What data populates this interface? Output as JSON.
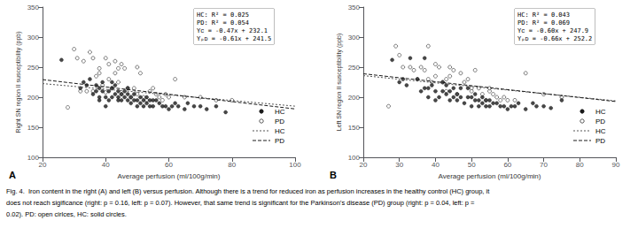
{
  "chart_data": [
    {
      "type": "scatter",
      "title": "A",
      "annotations": [
        "HC: R² = 0.025\nPD: R² = 0.054\nYᴄ = -0.47x + 232.1\nYₚᴅ = -0.61x + 241.5"
      ],
      "xlabel": "Average perfusion (ml/100g/min)",
      "ylabel": "Right SN region II susceptibility (ppb)",
      "xlim": [
        20,
        100
      ],
      "ylim": [
        100,
        350
      ],
      "xticks": [
        20,
        40,
        60,
        80,
        100
      ],
      "yticks": [
        100,
        150,
        200,
        250,
        300,
        350
      ],
      "grid": false,
      "series": [
        {
          "name": "HC",
          "type": "scatter",
          "marker": "circle",
          "color": "#1a1a1a",
          "x": [
            26,
            32,
            33,
            34,
            35,
            36,
            37,
            37,
            38,
            38,
            38,
            39,
            39,
            40,
            40,
            41,
            41,
            42,
            42,
            42,
            43,
            43,
            44,
            44,
            44,
            45,
            45,
            46,
            46,
            47,
            47,
            47,
            48,
            48,
            49,
            49,
            50,
            50,
            51,
            51,
            52,
            52,
            53,
            53,
            54,
            54,
            55,
            55,
            56,
            57,
            58,
            59,
            60,
            61,
            62,
            63,
            65,
            66,
            68,
            70,
            72,
            75,
            78
          ],
          "values": [
            262,
            215,
            225,
            220,
            230,
            205,
            210,
            220,
            195,
            200,
            215,
            210,
            225,
            185,
            200,
            195,
            210,
            200,
            215,
            225,
            205,
            220,
            195,
            200,
            210,
            195,
            205,
            200,
            210,
            195,
            205,
            215,
            190,
            200,
            195,
            205,
            185,
            195,
            190,
            200,
            185,
            195,
            190,
            200,
            185,
            195,
            185,
            195,
            195,
            190,
            185,
            185,
            180,
            185,
            190,
            185,
            180,
            190,
            185,
            185,
            180,
            185,
            175
          ]
        },
        {
          "name": "PD",
          "type": "scatter",
          "marker": "open_circle",
          "color": "#1a1a1a",
          "x": [
            28,
            30,
            31,
            32,
            33,
            34,
            35,
            36,
            36,
            37,
            38,
            38,
            39,
            40,
            40,
            41,
            41,
            42,
            43,
            43,
            44,
            44,
            45,
            45,
            46,
            47,
            48,
            49,
            50,
            50,
            51,
            52,
            53,
            54,
            55,
            56,
            57,
            58,
            59,
            60,
            62,
            65,
            70,
            75,
            80
          ],
          "values": [
            183,
            280,
            265,
            210,
            260,
            210,
            275,
            265,
            210,
            235,
            240,
            248,
            220,
            265,
            208,
            255,
            230,
            215,
            260,
            240,
            248,
            225,
            205,
            255,
            248,
            215,
            200,
            215,
            205,
            250,
            240,
            200,
            195,
            210,
            215,
            205,
            200,
            195,
            205,
            200,
            230,
            200,
            200,
            195,
            195
          ]
        },
        {
          "name": "HC",
          "type": "line",
          "line_style": "dotted",
          "color": "#555555",
          "x": [
            20,
            100
          ],
          "values": [
            222.7,
            185.1
          ]
        },
        {
          "name": "PD",
          "type": "line",
          "line_style": "dashed",
          "color": "#1a1a1a",
          "x": [
            20,
            100
          ],
          "values": [
            229.3,
            180.5
          ]
        }
      ]
    },
    {
      "type": "scatter",
      "title": "B",
      "annotations": [
        "HC: R² = 0.043\nPD: R² = 0.069\nYᴄ = -0.60x + 247.9\nYₚᴅ = -0.66x + 252.2"
      ],
      "xlabel": "Average perfusion (ml/100g/min)",
      "ylabel": "Left SN region II susceptibility (ppb)",
      "xlim": [
        20,
        90
      ],
      "ylim": [
        100,
        350
      ],
      "xticks": [
        20,
        30,
        40,
        50,
        60,
        70,
        80,
        90
      ],
      "yticks": [
        100,
        150,
        200,
        250,
        300,
        350
      ],
      "grid": false,
      "series": [
        {
          "name": "HC",
          "type": "scatter",
          "marker": "circle",
          "color": "#1a1a1a",
          "x": [
            28,
            30,
            31,
            32,
            33,
            35,
            36,
            37,
            37,
            38,
            38,
            39,
            40,
            40,
            41,
            42,
            42,
            43,
            43,
            44,
            44,
            45,
            45,
            46,
            46,
            47,
            47,
            48,
            49,
            49,
            50,
            50,
            51,
            51,
            52,
            52,
            53,
            53,
            54,
            54,
            55,
            55,
            56,
            57,
            58,
            59,
            60,
            61,
            62,
            63,
            65,
            67,
            68,
            70,
            72,
            75
          ],
          "values": [
            262,
            225,
            230,
            220,
            265,
            230,
            210,
            215,
            265,
            200,
            215,
            220,
            195,
            210,
            200,
            210,
            225,
            205,
            220,
            195,
            210,
            200,
            215,
            195,
            205,
            200,
            215,
            190,
            200,
            215,
            185,
            200,
            195,
            205,
            185,
            195,
            190,
            200,
            185,
            195,
            185,
            195,
            190,
            190,
            185,
            185,
            180,
            185,
            185,
            190,
            180,
            190,
            185,
            185,
            182,
            195
          ]
        },
        {
          "name": "PD",
          "type": "scatter",
          "marker": "open_circle",
          "color": "#1a1a1a",
          "x": [
            27,
            29,
            30,
            31,
            33,
            34,
            35,
            36,
            37,
            38,
            38,
            39,
            40,
            40,
            41,
            42,
            43,
            43,
            44,
            44,
            45,
            46,
            47,
            48,
            49,
            50,
            50,
            51,
            52,
            53,
            54,
            55,
            55,
            56,
            57,
            58,
            59,
            60,
            62,
            65,
            70,
            75
          ],
          "values": [
            185,
            285,
            270,
            250,
            250,
            245,
            230,
            250,
            245,
            230,
            285,
            225,
            255,
            235,
            250,
            225,
            210,
            230,
            250,
            235,
            245,
            205,
            240,
            225,
            230,
            215,
            210,
            245,
            215,
            205,
            195,
            210,
            215,
            205,
            200,
            195,
            200,
            195,
            195,
            240,
            205,
            200
          ]
        },
        {
          "name": "HC",
          "type": "line",
          "line_style": "dotted",
          "color": "#555555",
          "x": [
            20,
            90
          ],
          "values": [
            235.9,
            193.9
          ]
        },
        {
          "name": "PD",
          "type": "line",
          "line_style": "dashed",
          "color": "#1a1a1a",
          "x": [
            20,
            90
          ],
          "values": [
            239.0,
            192.8
          ]
        }
      ]
    }
  ],
  "caption": [
    "Fig. 4.  Iron content in the right (A) and left (B) versus perfusion. Although there is a trend for reduced iron as perfusion increases in the healthy control (HC) group, it",
    "does not reach sigificance (right: p = 0.16, left: p = 0.07). However, that same trend is significant for the Parkinson’s disease (PD) group (right: p = 0.04, left: p =",
    "0.02). PD: open cirlces, HC: solid circles."
  ]
}
